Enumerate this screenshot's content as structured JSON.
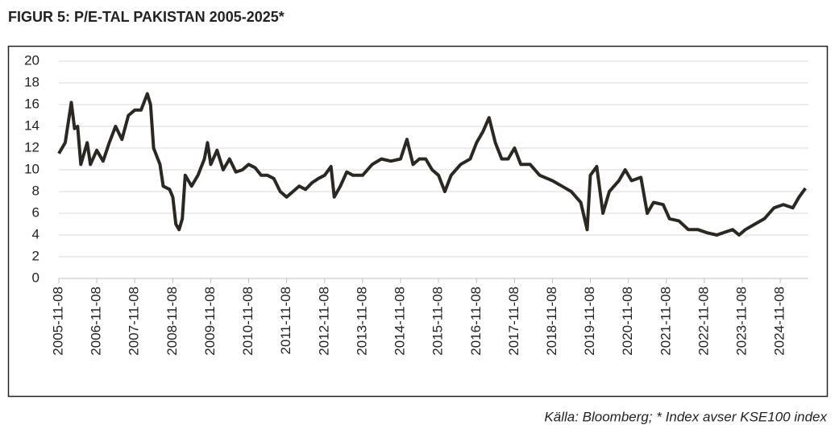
{
  "chart_data": {
    "type": "line",
    "title": "FIGUR 5: P/E-TAL PAKISTAN 2005-2025*",
    "source": "Källa: Bloomberg; * Index avser KSE100 index",
    "x": [
      "2005-11-08",
      "2006-01-08",
      "2006-03-08",
      "2006-04-08",
      "2006-05-08",
      "2006-06-08",
      "2006-08-08",
      "2006-09-08",
      "2006-11-08",
      "2007-01-08",
      "2007-03-08",
      "2007-05-08",
      "2007-07-08",
      "2007-09-08",
      "2007-11-08",
      "2008-01-08",
      "2008-03-08",
      "2008-04-08",
      "2008-05-08",
      "2008-07-08",
      "2008-08-08",
      "2008-10-08",
      "2008-11-08",
      "2008-12-08",
      "2009-01-08",
      "2009-02-08",
      "2009-03-08",
      "2009-05-08",
      "2009-07-08",
      "2009-09-08",
      "2009-10-08",
      "2009-11-08",
      "2010-01-08",
      "2010-03-08",
      "2010-05-08",
      "2010-07-08",
      "2010-09-08",
      "2010-11-08",
      "2011-01-08",
      "2011-03-08",
      "2011-05-08",
      "2011-07-08",
      "2011-09-08",
      "2011-11-08",
      "2012-01-08",
      "2012-03-08",
      "2012-05-08",
      "2012-07-08",
      "2012-09-08",
      "2012-11-08",
      "2013-01-08",
      "2013-02-08",
      "2013-04-08",
      "2013-06-08",
      "2013-08-08",
      "2013-11-08",
      "2014-02-08",
      "2014-05-08",
      "2014-08-08",
      "2014-11-08",
      "2015-01-08",
      "2015-03-08",
      "2015-05-08",
      "2015-07-08",
      "2015-09-08",
      "2015-11-08",
      "2016-01-08",
      "2016-03-08",
      "2016-06-08",
      "2016-09-08",
      "2016-11-08",
      "2017-01-08",
      "2017-03-08",
      "2017-05-08",
      "2017-07-08",
      "2017-09-08",
      "2017-11-08",
      "2018-01-08",
      "2018-04-08",
      "2018-07-08",
      "2018-11-08",
      "2019-02-08",
      "2019-05-08",
      "2019-08-08",
      "2019-10-08",
      "2019-11-08",
      "2020-01-08",
      "2020-03-08",
      "2020-05-08",
      "2020-08-08",
      "2020-10-08",
      "2020-12-08",
      "2021-03-08",
      "2021-05-08",
      "2021-07-08",
      "2021-10-08",
      "2021-12-08",
      "2022-03-08",
      "2022-06-08",
      "2022-09-08",
      "2022-12-08",
      "2023-03-08",
      "2023-06-08",
      "2023-08-08",
      "2023-10-08",
      "2023-12-08",
      "2024-03-08",
      "2024-06-08",
      "2024-09-08",
      "2024-12-08",
      "2025-03-08",
      "2025-05-08",
      "2025-07-08"
    ],
    "series": [
      {
        "color": "#2b2722",
        "values": [
          11.5,
          12.5,
          16.2,
          13.8,
          14.0,
          10.5,
          12.5,
          10.5,
          11.8,
          10.8,
          12.5,
          14.0,
          12.8,
          15.0,
          15.5,
          15.5,
          17.0,
          16.0,
          12.0,
          10.5,
          8.5,
          8.2,
          7.5,
          5.0,
          4.5,
          5.5,
          9.5,
          8.5,
          9.5,
          11.0,
          12.5,
          10.5,
          11.8,
          10.0,
          11.0,
          9.8,
          10.0,
          10.5,
          10.2,
          9.5,
          9.5,
          9.2,
          8.0,
          7.5,
          8.0,
          8.5,
          8.2,
          8.8,
          9.2,
          9.5,
          10.3,
          7.5,
          8.5,
          9.8,
          9.5,
          9.5,
          10.5,
          11.0,
          10.8,
          11.0,
          12.8,
          10.5,
          11.0,
          11.0,
          10.0,
          9.5,
          8.0,
          9.5,
          10.5,
          11.0,
          12.5,
          13.5,
          14.8,
          12.5,
          11.0,
          11.0,
          12.0,
          10.5,
          10.5,
          9.5,
          9.0,
          8.5,
          8.0,
          7.0,
          4.5,
          9.5,
          10.3,
          6.0,
          8.0,
          9.0,
          10.0,
          9.0,
          9.3,
          6.0,
          7.0,
          6.8,
          5.5,
          5.3,
          4.5,
          4.5,
          4.2,
          4.0,
          4.3,
          4.5,
          4.0,
          4.5,
          5.0,
          5.5,
          6.5,
          6.8,
          6.5,
          7.5,
          8.3
        ]
      }
    ],
    "xlim": [
      "2005-11-08",
      "2025-08-05"
    ],
    "xticks": [
      "2005-11-08",
      "2006-11-08",
      "2007-11-08",
      "2008-11-08",
      "2009-11-08",
      "2010-11-08",
      "2011-11-08",
      "2012-11-08",
      "2013-11-08",
      "2014-11-08",
      "2015-11-08",
      "2016-11-08",
      "2017-11-08",
      "2018-11-08",
      "2019-11-08",
      "2020-11-08",
      "2021-11-08",
      "2022-11-08",
      "2023-11-08",
      "2024-11-08"
    ],
    "ylim": [
      0,
      20
    ],
    "yticks": [
      0,
      2,
      4,
      6,
      8,
      10,
      12,
      14,
      16,
      18,
      20
    ],
    "grid": true
  }
}
